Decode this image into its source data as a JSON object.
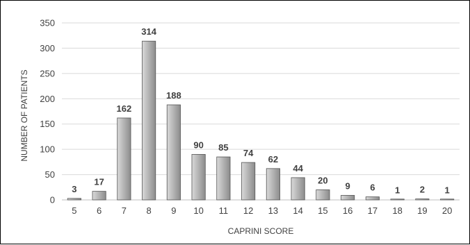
{
  "chart_data": {
    "type": "bar",
    "title": "",
    "xlabel": "CAPRINI SCORE",
    "ylabel": "NUMBER OF PATIENTS",
    "categories": [
      "5",
      "6",
      "7",
      "8",
      "9",
      "10",
      "11",
      "12",
      "13",
      "14",
      "15",
      "16",
      "17",
      "18",
      "19",
      "20"
    ],
    "values": [
      3,
      17,
      162,
      314,
      188,
      90,
      85,
      74,
      62,
      44,
      20,
      9,
      6,
      1,
      2,
      1
    ],
    "data_labels": [
      "3",
      "17",
      "162",
      "314",
      "188",
      "90",
      "85",
      "74",
      "62",
      "44",
      "20",
      "9",
      "6",
      "1",
      "2",
      "1"
    ],
    "ylim": [
      0,
      350
    ],
    "yticks": [
      "0",
      "50",
      "100",
      "150",
      "200",
      "250",
      "300",
      "350"
    ],
    "grid": true,
    "legend": "none",
    "bar_gradient": [
      "#d9d9d9",
      "#8c8c8c"
    ],
    "bar_stroke": "#555555",
    "grid_color": "#d9d9d9",
    "text_color": "#404040"
  }
}
